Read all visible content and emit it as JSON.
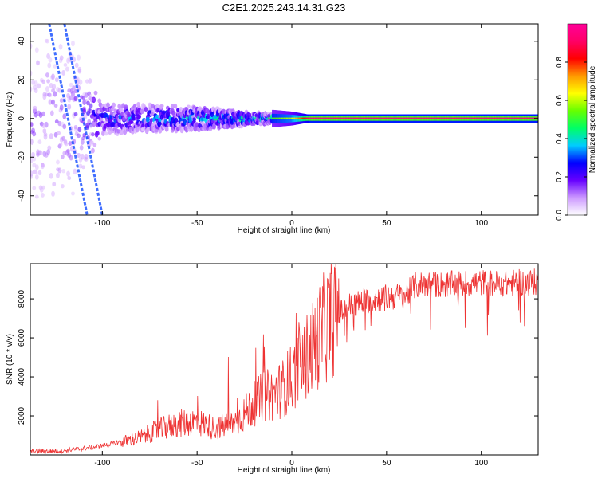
{
  "figure": {
    "title": "C2E1.2025.243.14.31.G23"
  },
  "chart_data": [
    {
      "type": "heatmap",
      "name": "spectrogram",
      "title": "C2E1.2025.243.14.31.G23",
      "xlabel": "Height of straight line (km)",
      "ylabel": "Frequency (Hz)",
      "xlim": [
        -138,
        130
      ],
      "ylim": [
        -50,
        49
      ],
      "xticks": [
        -100,
        -50,
        0,
        50,
        100
      ],
      "yticks": [
        -40,
        -20,
        0,
        20,
        40
      ],
      "colorbar": {
        "label": "Normalized spectral amplitude",
        "range": [
          0,
          1
        ],
        "ticks": [
          0.0,
          0.2,
          0.4,
          0.6,
          0.8
        ],
        "colormap": [
          "#ffffff",
          "#cc99ff",
          "#6600ff",
          "#0000ff",
          "#00ccff",
          "#00ff66",
          "#66ff00",
          "#ffff00",
          "#ff9900",
          "#ff0000",
          "#ff0066",
          "#ff0099"
        ]
      },
      "description_points": [
        {
          "x": -120,
          "spread_hz": 49,
          "amplitude": 0.15
        },
        {
          "x": -100,
          "spread_hz": 8,
          "amplitude": 0.3
        },
        {
          "x": -50,
          "spread_hz": 6,
          "amplitude": 0.4
        },
        {
          "x": -20,
          "spread_hz": 3,
          "amplitude": 0.45
        },
        {
          "x": 0,
          "spread_hz": 2,
          "amplitude": 0.6
        },
        {
          "x": 10,
          "spread_hz": 1,
          "amplitude": 0.95
        },
        {
          "x": 130,
          "spread_hz": 1,
          "amplitude": 0.95
        }
      ]
    },
    {
      "type": "line",
      "name": "snr",
      "xlabel": "Height of straight line (km)",
      "ylabel": "SNR (10 * v/v)",
      "xlim": [
        -138,
        130
      ],
      "ylim": [
        0,
        9800
      ],
      "xticks": [
        -100,
        -50,
        0,
        50,
        100
      ],
      "yticks": [
        2000,
        4000,
        6000,
        8000
      ],
      "color": "#ee3333",
      "x": [
        -138,
        -120,
        -110,
        -100,
        -90,
        -80,
        -70,
        -60,
        -50,
        -40,
        -30,
        -20,
        -15,
        -10,
        -5,
        0,
        5,
        10,
        15,
        20,
        25,
        30,
        40,
        50,
        60,
        65,
        70,
        80,
        90,
        100,
        110,
        120,
        130
      ],
      "y": [
        150,
        200,
        300,
        450,
        650,
        900,
        1300,
        1600,
        1700,
        1350,
        1650,
        2600,
        3000,
        3100,
        3400,
        4000,
        4600,
        5400,
        6200,
        6900,
        7500,
        7900,
        8200,
        8350,
        8450,
        8950,
        9050,
        9000,
        9050,
        9100,
        9050,
        9100,
        9150
      ]
    }
  ]
}
